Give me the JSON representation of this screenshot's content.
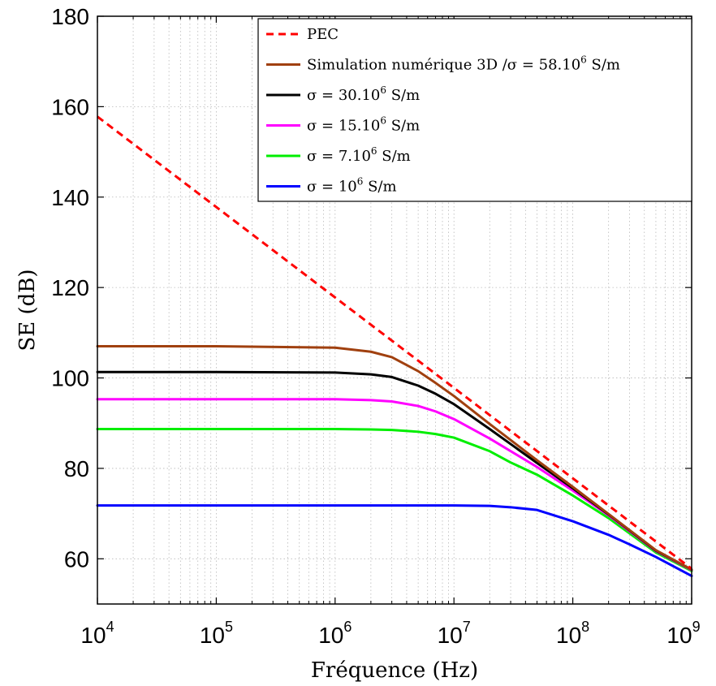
{
  "chart_data": {
    "type": "line",
    "xlabel": "Fréquence (Hz)",
    "ylabel": "SE (dB)",
    "xscale": "log",
    "xlim": [
      10000,
      1000000000
    ],
    "ylim": [
      50,
      180
    ],
    "x_ticks": [
      {
        "base": "10",
        "exp": "4",
        "value": 10000
      },
      {
        "base": "10",
        "exp": "5",
        "value": 100000
      },
      {
        "base": "10",
        "exp": "6",
        "value": 1000000
      },
      {
        "base": "10",
        "exp": "7",
        "value": 10000000
      },
      {
        "base": "10",
        "exp": "8",
        "value": 100000000
      },
      {
        "base": "10",
        "exp": "9",
        "value": 1000000000
      }
    ],
    "y_ticks": [
      60,
      80,
      100,
      120,
      140,
      160,
      180
    ],
    "grid": true,
    "legend_position": "top-right",
    "series": [
      {
        "name": "PEC",
        "legend": {
          "pre": "PEC",
          "sup": "",
          "post": ""
        },
        "color": "#ff0000",
        "dash": true,
        "x": [
          10000,
          1000000000
        ],
        "y": [
          157.8,
          57.8
        ]
      },
      {
        "name": "Simulation numérique 3D /σ = 58.10⁶ S/m",
        "legend": {
          "pre": "Simulation numérique 3D /σ = 58.10",
          "sup": "6",
          "post": " S/m"
        },
        "color": "#a0400f",
        "dash": false,
        "x": [
          10000,
          100000,
          1000000,
          2000000,
          3000000,
          5000000,
          7000000,
          10000000,
          20000000,
          50000000,
          100000000,
          200000000,
          500000000,
          1000000000
        ],
        "y": [
          107.0,
          107.0,
          106.7,
          105.8,
          104.6,
          101.5,
          98.9,
          96.0,
          89.8,
          81.8,
          75.9,
          69.9,
          61.9,
          57.6
        ]
      },
      {
        "name": "σ = 30.10⁶ S/m",
        "legend": {
          "pre": "σ = 30.10",
          "sup": "6",
          "post": " S/m"
        },
        "color": "#000000",
        "dash": false,
        "x": [
          10000,
          100000,
          1000000,
          2000000,
          3000000,
          5000000,
          7000000,
          10000000,
          20000000,
          50000000,
          100000000,
          200000000,
          500000000,
          1000000000
        ],
        "y": [
          101.3,
          101.3,
          101.2,
          100.8,
          100.2,
          98.3,
          96.5,
          94.2,
          88.7,
          81.2,
          75.6,
          69.8,
          61.8,
          57.6
        ]
      },
      {
        "name": "σ = 15.10⁶ S/m",
        "legend": {
          "pre": "σ = 15.10",
          "sup": "6",
          "post": " S/m"
        },
        "color": "#ff00ff",
        "dash": false,
        "x": [
          10000,
          100000,
          1000000,
          2000000,
          3000000,
          5000000,
          7000000,
          10000000,
          20000000,
          50000000,
          100000000,
          200000000,
          500000000,
          1000000000
        ],
        "y": [
          95.3,
          95.3,
          95.3,
          95.1,
          94.8,
          93.8,
          92.6,
          90.9,
          86.6,
          80.3,
          75.1,
          69.6,
          61.7,
          57.5
        ]
      },
      {
        "name": "σ = 7.10⁶ S/m",
        "legend": {
          "pre": "σ = 7.10",
          "sup": "6",
          "post": " S/m"
        },
        "color": "#00ee00",
        "dash": false,
        "x": [
          10000,
          100000,
          1000000,
          2000000,
          3000000,
          5000000,
          7000000,
          10000000,
          20000000,
          30000000,
          50000000,
          100000000,
          200000000,
          500000000,
          1000000000
        ],
        "y": [
          88.7,
          88.7,
          88.7,
          88.6,
          88.5,
          88.1,
          87.6,
          86.8,
          83.8,
          81.3,
          78.6,
          74.0,
          69.0,
          61.4,
          57.3
        ]
      },
      {
        "name": "σ = 10⁶ S/m",
        "legend": {
          "pre": "σ = 10",
          "sup": "6",
          "post": " S/m"
        },
        "color": "#0000ff",
        "dash": false,
        "x": [
          10000,
          100000,
          1000000,
          10000000,
          20000000,
          30000000,
          50000000,
          100000000,
          200000000,
          300000000,
          500000000,
          1000000000
        ],
        "y": [
          71.8,
          71.8,
          71.8,
          71.8,
          71.7,
          71.4,
          70.8,
          68.3,
          65.3,
          63.2,
          60.4,
          56.2
        ]
      }
    ]
  }
}
